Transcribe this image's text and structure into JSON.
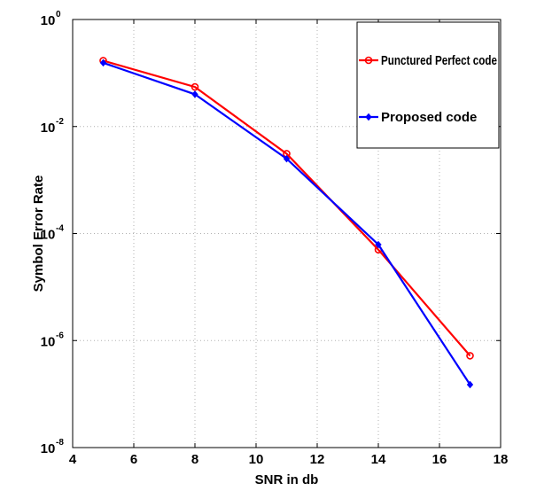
{
  "chart_data": {
    "type": "line",
    "title": "",
    "xlabel": "SNR in db",
    "ylabel": "Symbol Error Rate",
    "xlim": [
      4,
      18
    ],
    "ylim_log10": [
      -8,
      0
    ],
    "y_scale": "log",
    "x_ticks": [
      4,
      6,
      8,
      10,
      12,
      14,
      16,
      18
    ],
    "x_tick_labels": [
      "4",
      "6",
      "8",
      "10",
      "12",
      "14",
      "16",
      "18"
    ],
    "y_ticks": [
      {
        "base": "10",
        "exp": "0",
        "log": 0
      },
      {
        "base": "10",
        "exp": "-2",
        "log": -2
      },
      {
        "base": "10",
        "exp": "-4",
        "log": -4
      },
      {
        "base": "10",
        "exp": "-6",
        "log": -6
      },
      {
        "base": "10",
        "exp": "-8",
        "log": -8
      }
    ],
    "grid": true,
    "legend_position": "top-right",
    "series": [
      {
        "name": "Punctured Perfect code",
        "color": "#ff0000",
        "marker": "circle",
        "x": [
          5,
          8,
          11,
          14,
          17
        ],
        "y": [
          0.17,
          0.055,
          0.0031,
          5e-05,
          5.2e-07
        ]
      },
      {
        "name": "Proposed code",
        "color": "#0000ff",
        "marker": "diamond",
        "x": [
          5,
          8,
          11,
          14,
          17
        ],
        "y": [
          0.155,
          0.04,
          0.0025,
          6.2e-05,
          1.5e-07
        ]
      }
    ]
  }
}
